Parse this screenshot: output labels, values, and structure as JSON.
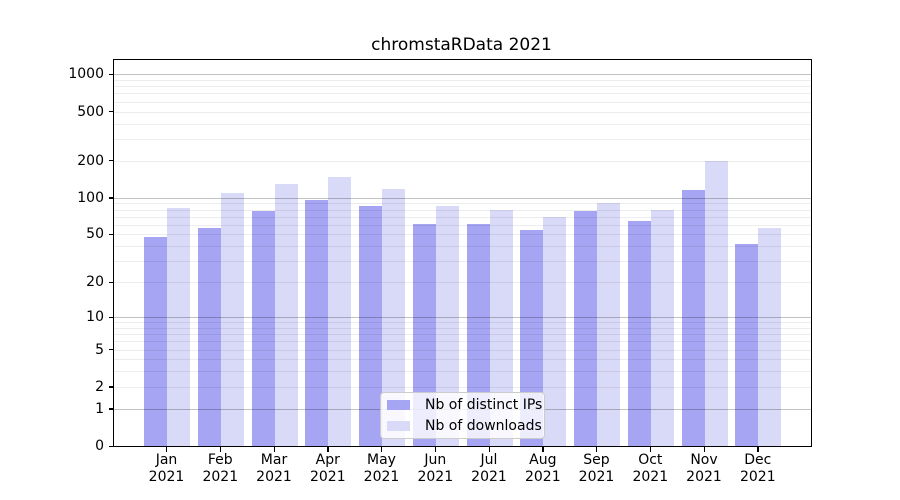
{
  "chart_data": {
    "type": "bar",
    "title": "chromstaRData 2021",
    "x_labels": [
      {
        "month": "Jan",
        "year": "2021"
      },
      {
        "month": "Feb",
        "year": "2021"
      },
      {
        "month": "Mar",
        "year": "2021"
      },
      {
        "month": "Apr",
        "year": "2021"
      },
      {
        "month": "May",
        "year": "2021"
      },
      {
        "month": "Jun",
        "year": "2021"
      },
      {
        "month": "Jul",
        "year": "2021"
      },
      {
        "month": "Aug",
        "year": "2021"
      },
      {
        "month": "Sep",
        "year": "2021"
      },
      {
        "month": "Oct",
        "year": "2021"
      },
      {
        "month": "Nov",
        "year": "2021"
      },
      {
        "month": "Dec",
        "year": "2021"
      }
    ],
    "series": [
      {
        "name": "Nb of distinct IPs",
        "color": "#a5a5f4",
        "values": [
          48,
          56,
          78,
          96,
          85,
          61,
          61,
          54,
          78,
          64,
          115,
          42
        ]
      },
      {
        "name": "Nb of downloads",
        "color": "#d9d9f8",
        "values": [
          83,
          110,
          130,
          147,
          118,
          85,
          80,
          69,
          90,
          80,
          197,
          56
        ]
      }
    ],
    "y_axis": {
      "scale": "log10(value+1)",
      "tick_labels": [
        "0",
        "1",
        "2",
        "5",
        "10",
        "20",
        "50",
        "100",
        "200",
        "500",
        "1000"
      ],
      "ylim": [
        0,
        1350
      ],
      "major_gridlines": [
        1,
        10,
        100,
        1000
      ],
      "minor_gridlines": "2-9 per decade"
    },
    "legend": {
      "position": "lower center"
    },
    "grid": "horizontal, drawn over bars"
  }
}
